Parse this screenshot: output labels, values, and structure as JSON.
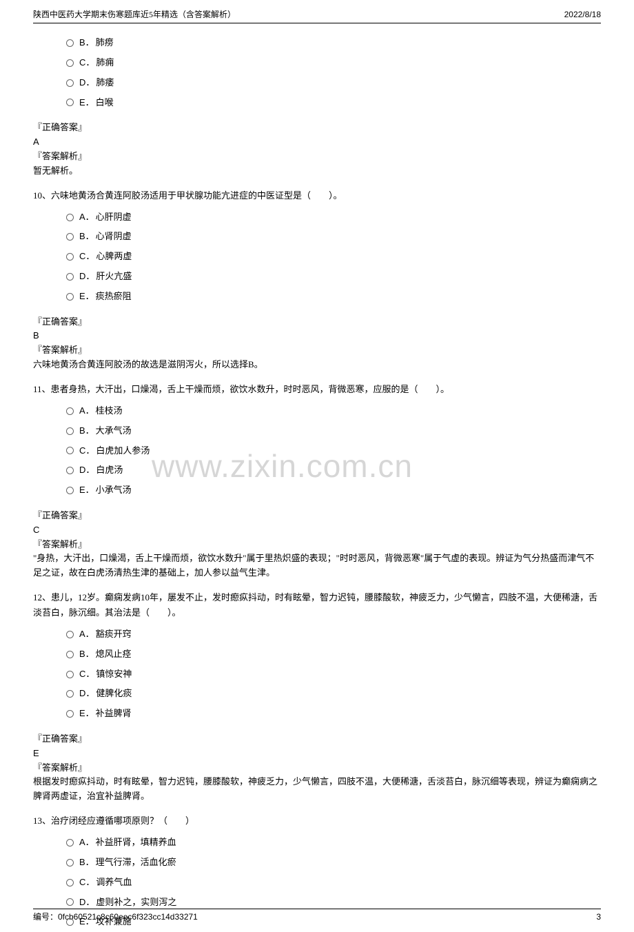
{
  "header": {
    "title": "陕西中医药大学期末伤寒题库近5年精选（含答案解析）",
    "date": "2022/8/18"
  },
  "watermark": "www.zixin.com.cn",
  "labels": {
    "correct_answer": "『正确答案』",
    "analysis": "『答案解析』"
  },
  "questions": [
    {
      "id": "q9",
      "stem": "",
      "options": [
        {
          "letter": "B．",
          "text": "肺痨"
        },
        {
          "letter": "C．",
          "text": "肺痈"
        },
        {
          "letter": "D．",
          "text": "肺痿"
        },
        {
          "letter": "E．",
          "text": "白喉"
        }
      ],
      "answer": "A",
      "analysis": "暂无解析。"
    },
    {
      "id": "q10",
      "stem": "10、六味地黄汤合黄连阿胶汤适用于甲状腺功能亢进症的中医证型是（　　）。",
      "options": [
        {
          "letter": "A．",
          "text": "心肝阴虚"
        },
        {
          "letter": "B．",
          "text": "心肾阴虚"
        },
        {
          "letter": "C．",
          "text": "心脾两虚"
        },
        {
          "letter": "D．",
          "text": "肝火亢盛"
        },
        {
          "letter": "E．",
          "text": "痰热瘀阻"
        }
      ],
      "answer": "B",
      "analysis": "六味地黄汤合黄连阿胶汤的故选是滋阴泻火，所以选择B。"
    },
    {
      "id": "q11",
      "stem": "11、患者身热，大汗出，口燥渴，舌上干燥而烦，欲饮水数升，时时恶风，背微恶寒，应服的是（　　）。",
      "options": [
        {
          "letter": "A．",
          "text": "桂枝汤"
        },
        {
          "letter": "B．",
          "text": "大承气汤"
        },
        {
          "letter": "C．",
          "text": "白虎加人参汤"
        },
        {
          "letter": "D．",
          "text": "白虎汤"
        },
        {
          "letter": "E．",
          "text": "小承气汤"
        }
      ],
      "answer": "C",
      "analysis": "\"身热，大汗出，口燥渴，舌上干燥而烦，欲饮水数升\"属于里热炽盛的表现；\"时时恶风，背微恶寒\"属于气虚的表现。辨证为气分热盛而津气不足之证，故在白虎汤清热生津的基础上，加人参以益气生津。"
    },
    {
      "id": "q12",
      "stem": "12、患儿，12岁。癫痫发病10年，屡发不止，发时瘛疭抖动，时有眩晕，智力迟钝，腰膝酸软，神疲乏力，少气懒言，四肢不温，大便稀溏，舌淡苔白，脉沉细。其治法是（　　）。",
      "options": [
        {
          "letter": "A．",
          "text": "豁痰开窍"
        },
        {
          "letter": "B．",
          "text": "熄风止痉"
        },
        {
          "letter": "C．",
          "text": "镇惊安神"
        },
        {
          "letter": "D．",
          "text": "健脾化痰"
        },
        {
          "letter": "E．",
          "text": "补益脾肾"
        }
      ],
      "answer": "E",
      "analysis": "根据发时瘛疭抖动，时有眩晕，智力迟钝，腰膝酸软，神疲乏力，少气懒言，四肢不温，大便稀溏，舌淡苔白，脉沉细等表现，辨证为癫痫病之脾肾两虚证，治宜补益脾肾。"
    },
    {
      "id": "q13",
      "stem": "13、治疗闭经应遵循哪项原则？（　　）",
      "options": [
        {
          "letter": "A．",
          "text": "补益肝肾，填精养血"
        },
        {
          "letter": "B．",
          "text": "理气行滞，活血化瘀"
        },
        {
          "letter": "C．",
          "text": "调养气血"
        },
        {
          "letter": "D．",
          "text": "虚则补之，实则泻之"
        },
        {
          "letter": "E．",
          "text": "攻补兼施"
        }
      ],
      "answer": "",
      "analysis": ""
    }
  ],
  "footer": {
    "id": "编号：0fcb60521c8c60eec6f323cc14d33271",
    "page": "3"
  },
  "colors": {
    "text": "#000000",
    "background": "#ffffff",
    "watermark": "rgba(180,180,180,0.55)",
    "border": "#000000"
  }
}
